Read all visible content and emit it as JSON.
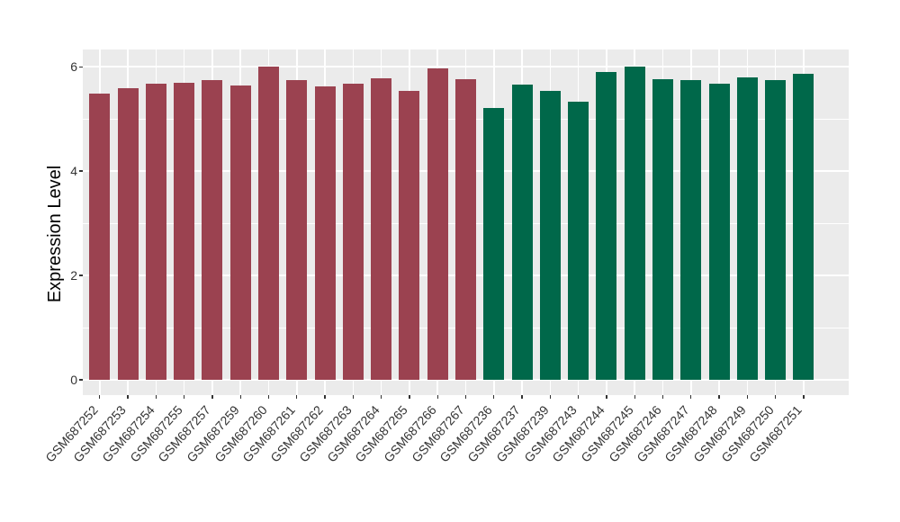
{
  "chart_data": {
    "type": "bar",
    "title": "",
    "xlabel": "",
    "ylabel": "Expression Level",
    "yticks": [
      0,
      2,
      4,
      6
    ],
    "ytick_labels": [
      "0",
      "2",
      "4",
      "6"
    ],
    "yticks_minor": [
      1,
      3,
      5
    ],
    "ylim": [
      -0.293,
      6.33
    ],
    "grid": true,
    "legend_position": "none",
    "panel_bg": "#EBEBEB",
    "grid_color": "#FFFFFF",
    "axis_text_color": "#333333",
    "tick_color": "#333333",
    "group_colors": {
      "group1": "#9B4250",
      "group2": "#00684A"
    },
    "categories": [
      "GSM687252",
      "GSM687253",
      "GSM687254",
      "GSM687255",
      "GSM687257",
      "GSM687259",
      "GSM687260",
      "GSM687261",
      "GSM687262",
      "GSM687263",
      "GSM687264",
      "GSM687265",
      "GSM687266",
      "GSM687267",
      "GSM687236",
      "GSM687237",
      "GSM687239",
      "GSM687243",
      "GSM687244",
      "GSM687245",
      "GSM687246",
      "GSM687247",
      "GSM687248",
      "GSM687249",
      "GSM687250",
      "GSM687251"
    ],
    "bars": [
      {
        "label": "GSM687252",
        "value": 5.48,
        "group": "group1"
      },
      {
        "label": "GSM687253",
        "value": 5.58,
        "group": "group1"
      },
      {
        "label": "GSM687254",
        "value": 5.68,
        "group": "group1"
      },
      {
        "label": "GSM687255",
        "value": 5.69,
        "group": "group1"
      },
      {
        "label": "GSM687257",
        "value": 5.75,
        "group": "group1"
      },
      {
        "label": "GSM687259",
        "value": 5.64,
        "group": "group1"
      },
      {
        "label": "GSM687260",
        "value": 6.0,
        "group": "group1"
      },
      {
        "label": "GSM687261",
        "value": 5.74,
        "group": "group1"
      },
      {
        "label": "GSM687262",
        "value": 5.62,
        "group": "group1"
      },
      {
        "label": "GSM687263",
        "value": 5.68,
        "group": "group1"
      },
      {
        "label": "GSM687264",
        "value": 5.78,
        "group": "group1"
      },
      {
        "label": "GSM687265",
        "value": 5.53,
        "group": "group1"
      },
      {
        "label": "GSM687266",
        "value": 5.97,
        "group": "group1"
      },
      {
        "label": "GSM687267",
        "value": 5.76,
        "group": "group1"
      },
      {
        "label": "GSM687236",
        "value": 5.21,
        "group": "group2"
      },
      {
        "label": "GSM687237",
        "value": 5.65,
        "group": "group2"
      },
      {
        "label": "GSM687239",
        "value": 5.53,
        "group": "group2"
      },
      {
        "label": "GSM687243",
        "value": 5.33,
        "group": "group2"
      },
      {
        "label": "GSM687244",
        "value": 5.9,
        "group": "group2"
      },
      {
        "label": "GSM687245",
        "value": 6.01,
        "group": "group2"
      },
      {
        "label": "GSM687246",
        "value": 5.76,
        "group": "group2"
      },
      {
        "label": "GSM687247",
        "value": 5.74,
        "group": "group2"
      },
      {
        "label": "GSM687248",
        "value": 5.68,
        "group": "group2"
      },
      {
        "label": "GSM687249",
        "value": 5.79,
        "group": "group2"
      },
      {
        "label": "GSM687250",
        "value": 5.74,
        "group": "group2"
      },
      {
        "label": "GSM687251",
        "value": 5.86,
        "group": "group2"
      }
    ]
  }
}
